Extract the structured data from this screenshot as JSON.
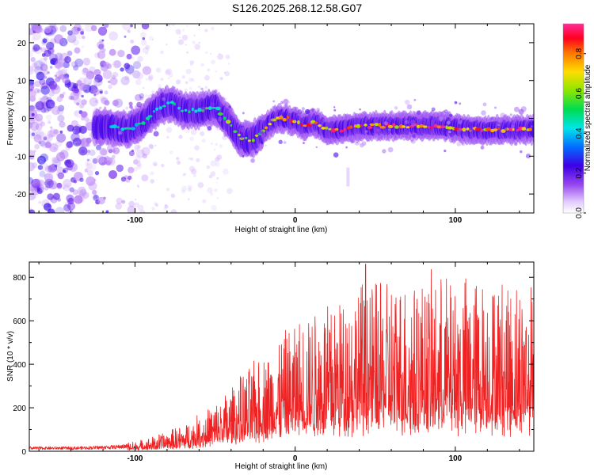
{
  "title": "S126.2025.268.12.58.G07",
  "colors": {
    "snr_line": "#ee2222",
    "spectrum_low": "#ffffff",
    "spectrum_high": "#ff2060"
  },
  "chart_data": [
    {
      "type": "heatmap",
      "name": "spectrogram",
      "xlabel": "Height of straight line (km)",
      "ylabel": "Frequency (Hz)",
      "xlim": [
        -166,
        149
      ],
      "ylim": [
        -25,
        25
      ],
      "xticks": [
        -100,
        0,
        100
      ],
      "yticks": [
        -20,
        -10,
        0,
        10,
        20
      ],
      "grid": false,
      "ridge_x": [
        -166,
        -140,
        -120,
        -105,
        -95,
        -85,
        -78,
        -70,
        -60,
        -50,
        -40,
        -35,
        -28,
        -20,
        -12,
        -5,
        0,
        5,
        12,
        20,
        30,
        40,
        50,
        60,
        75,
        90,
        110,
        130,
        149
      ],
      "ridge_y": [
        -4,
        -3,
        -2,
        -3,
        -1,
        3,
        4,
        2,
        2,
        3,
        -2,
        -5,
        -6,
        -3,
        0,
        0,
        -1,
        -2,
        -1,
        -3,
        -3,
        -2,
        -2,
        -2,
        -2,
        -2,
        -3,
        -3,
        -3
      ],
      "colorbar": {
        "label": "Normalized spectral amplitude",
        "range": [
          0.0,
          0.95
        ],
        "ticks": [
          0.0,
          0.2,
          0.4,
          0.6,
          0.8
        ],
        "tick_labels": [
          "0.0",
          "0.2",
          "0.4",
          "0.6",
          "0.8"
        ]
      }
    },
    {
      "type": "line",
      "name": "snr",
      "xlabel": "Height of straight line (km)",
      "ylabel": "SNR (10 * v/v)",
      "xlim": [
        -166,
        149
      ],
      "ylim": [
        0,
        870
      ],
      "xticks": [
        -100,
        0,
        100
      ],
      "yticks": [
        0,
        200,
        400,
        600,
        800
      ],
      "grid": false,
      "envelope_x": [
        -166,
        -140,
        -120,
        -100,
        -90,
        -80,
        -70,
        -60,
        -50,
        -40,
        -30,
        -20,
        -10,
        0,
        10,
        20,
        30,
        40,
        50,
        60,
        70,
        80,
        90,
        100,
        110,
        120,
        130,
        149
      ],
      "envelope_y": [
        15,
        15,
        18,
        25,
        35,
        50,
        65,
        90,
        120,
        160,
        200,
        240,
        280,
        320,
        350,
        380,
        400,
        420,
        420,
        430,
        430,
        430,
        430,
        430,
        430,
        430,
        430,
        430
      ],
      "peak_value": 860,
      "peak_x": 44
    }
  ]
}
